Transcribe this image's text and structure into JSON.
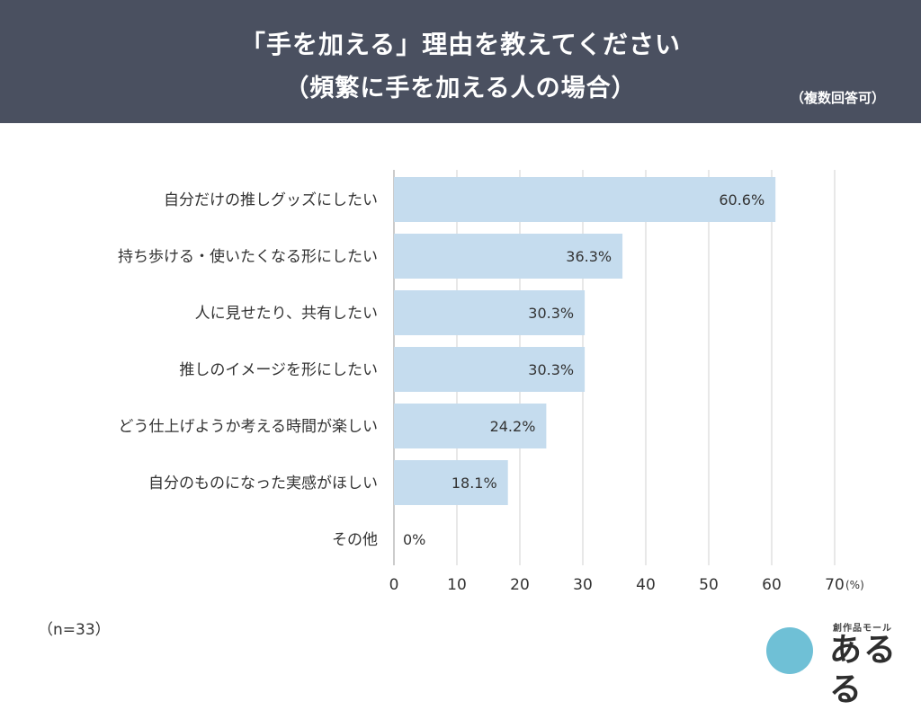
{
  "header": {
    "title_line1": "「手を加える」理由を教えてください",
    "title_line2": "（頻繁に手を加える人の場合）",
    "note": "（複数回答可）"
  },
  "sample_size": "（n=33）",
  "logo": {
    "small_text": "創作品モール",
    "main_text": "あるる"
  },
  "colors": {
    "header_bg": "#4a5060",
    "bar": "#c5dcee",
    "grid": "#d0d0d0"
  },
  "chart_data": {
    "type": "bar",
    "orientation": "horizontal",
    "categories": [
      "自分だけの推しグッズにしたい",
      "持ち歩ける・使いたくなる形にしたい",
      "人に見せたり、共有したい",
      "推しのイメージを形にしたい",
      "どう仕上げようか考える時間が楽しい",
      "自分のものになった実感がほしい",
      "その他"
    ],
    "values": [
      60.6,
      36.3,
      30.3,
      30.3,
      24.2,
      18.1,
      0
    ],
    "data_labels": [
      "60.6%",
      "36.3%",
      "30.3%",
      "30.3%",
      "24.2%",
      "18.1%",
      "0%"
    ],
    "xlim": [
      0,
      70
    ],
    "xticks": [
      0,
      10,
      20,
      30,
      40,
      50,
      60,
      70
    ],
    "xunit": "(%)",
    "grid": true
  }
}
